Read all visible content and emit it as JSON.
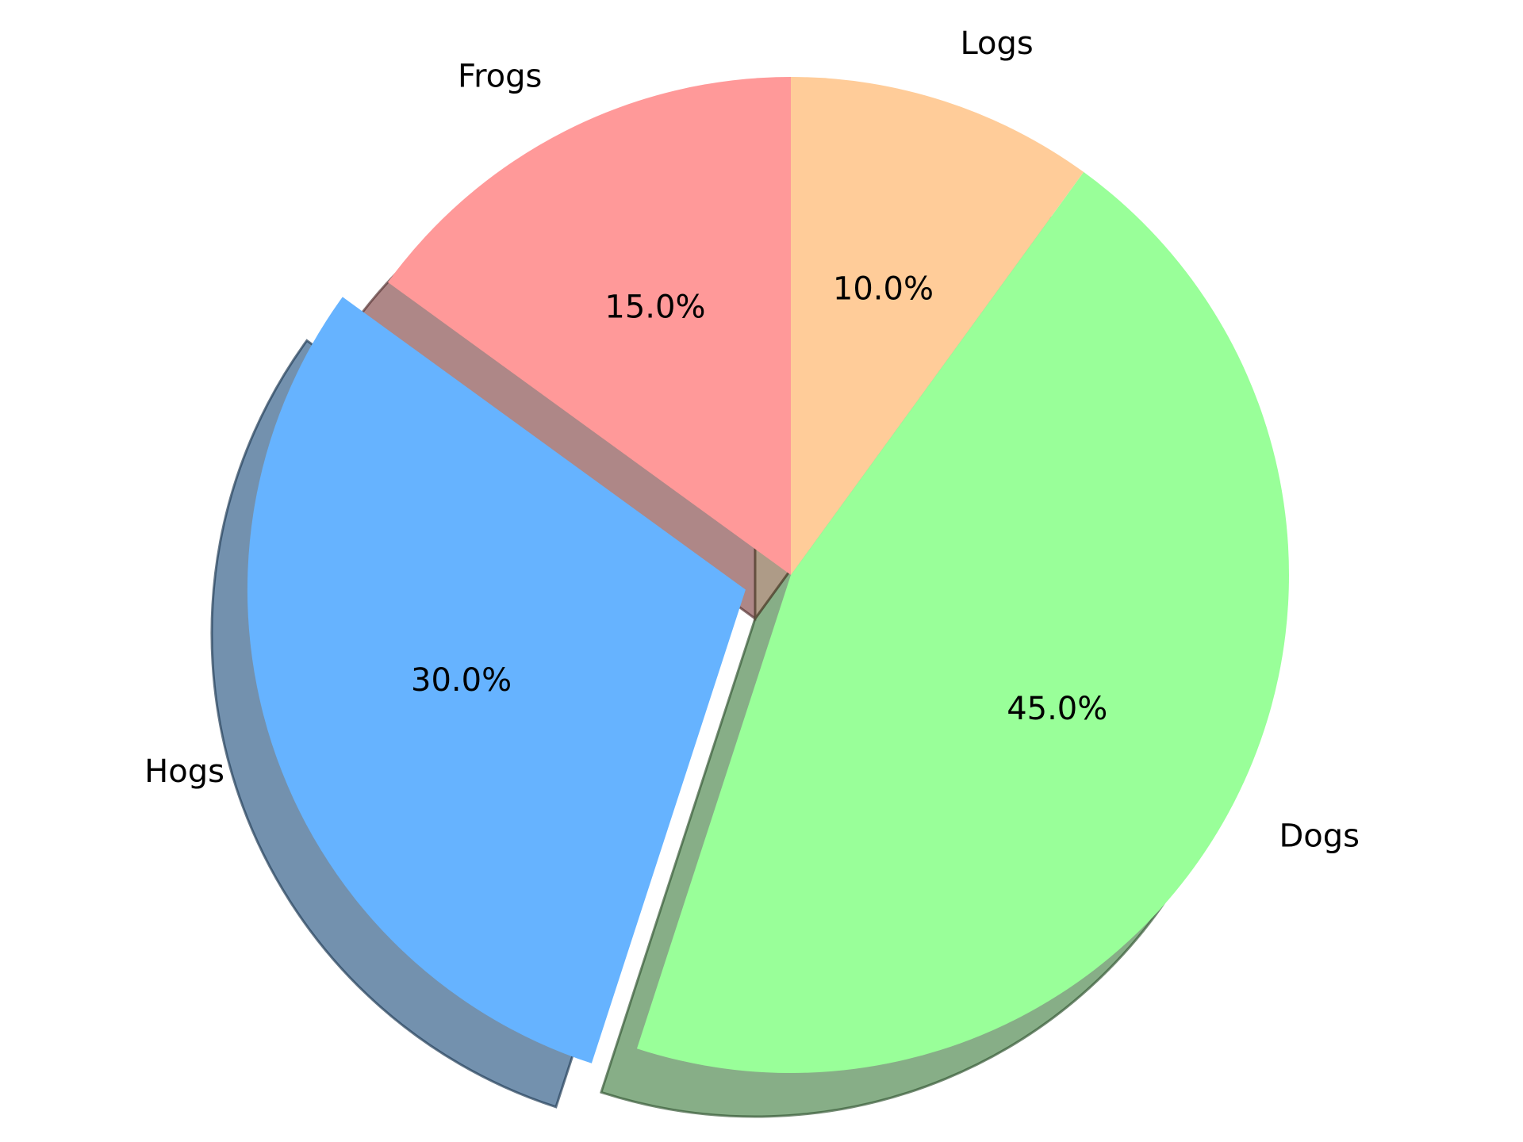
{
  "chart_data": {
    "type": "pie",
    "title": "",
    "categories": [
      "Frogs",
      "Hogs",
      "Dogs",
      "Logs"
    ],
    "values": [
      15,
      30,
      45,
      10
    ],
    "percent_labels": [
      "15.0%",
      "30.0%",
      "45.0%",
      "10.0%"
    ],
    "colors": [
      "#ff9999",
      "#66b3ff",
      "#99ff99",
      "#ffcc99"
    ],
    "exploded": [
      "Hogs"
    ],
    "start_angle_deg": 90,
    "direction": "counterclockwise",
    "shadow": true,
    "legend": "none"
  }
}
